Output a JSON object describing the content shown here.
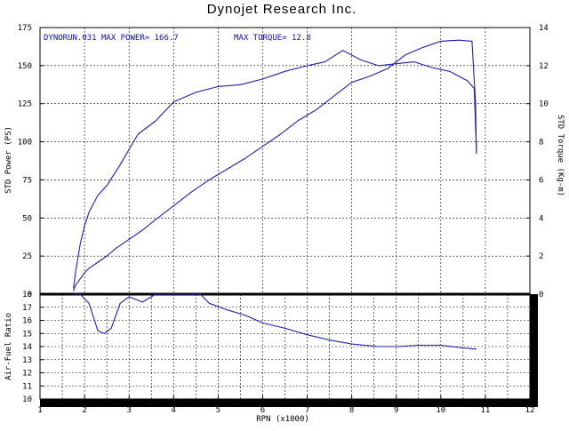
{
  "chart_data": {
    "type": "line",
    "title": "Dynojet Research Inc.",
    "annotations": {
      "run": "DYNORUN.031",
      "max_power": "MAX POWER= 166.7",
      "max_torque": "MAX TORQUE= 12.8"
    },
    "xlabel": "RPN (x1000)",
    "xlim": [
      1,
      12
    ],
    "xticks": [
      "1",
      "2",
      "3",
      "4",
      "5",
      "6",
      "7",
      "8",
      "9",
      "10",
      "11",
      "12"
    ],
    "upper": {
      "ylabel_left": "STD Power (PS)",
      "ylabel_right": "STD Torque (Kg-m)",
      "ylim_left": [
        0,
        175
      ],
      "ylim_right": [
        0,
        14
      ],
      "yticks_left": [
        "0",
        "25",
        "50",
        "75",
        "100",
        "125",
        "150",
        "175"
      ],
      "yticks_right": [
        "0",
        "2",
        "4",
        "6",
        "8",
        "10",
        "12",
        "14"
      ]
    },
    "lower": {
      "ylabel": "Air-Fuel Ratio",
      "ylim": [
        10,
        18
      ],
      "yticks": [
        "10",
        "11",
        "12",
        "13",
        "14",
        "15",
        "16",
        "17",
        "18"
      ]
    },
    "colors": {
      "series": "#1f1fa8",
      "axis": "#000000",
      "grid": "#000000"
    },
    "grid": true,
    "series": [
      {
        "axis": "left",
        "x": [
          1.75,
          1.8,
          1.9,
          2.0,
          2.1,
          2.3,
          2.5,
          2.7,
          3.0,
          3.3,
          3.6,
          4.0,
          4.4,
          4.8,
          5.2,
          5.6,
          6.0,
          6.4,
          6.8,
          7.2,
          7.6,
          8.0,
          8.4,
          8.8,
          9.2,
          9.6,
          10.0,
          10.4,
          10.7,
          10.78,
          10.8
        ],
        "values": [
          2,
          6,
          10,
          14,
          17,
          21,
          25,
          30,
          36,
          42,
          49,
          58,
          67,
          75,
          82,
          89,
          97,
          105,
          114,
          121,
          130,
          139,
          143,
          148,
          157,
          162,
          166,
          166.7,
          166,
          125,
          92
        ]
      },
      {
        "axis": "right",
        "x": [
          1.75,
          1.8,
          1.9,
          2.0,
          2.1,
          2.3,
          2.5,
          2.8,
          3.2,
          3.6,
          4.0,
          4.5,
          5.0,
          5.5,
          6.0,
          6.5,
          7.0,
          7.4,
          7.8,
          8.2,
          8.6,
          9.0,
          9.4,
          9.8,
          10.2,
          10.6,
          10.75,
          10.8
        ],
        "values": [
          0.3,
          1.2,
          2.6,
          3.6,
          4.3,
          5.2,
          5.7,
          6.8,
          8.4,
          9.1,
          10.1,
          10.6,
          10.9,
          11.0,
          11.3,
          11.7,
          12.0,
          12.2,
          12.8,
          12.3,
          12.0,
          12.1,
          12.2,
          11.9,
          11.7,
          11.2,
          10.8,
          7.5
        ]
      },
      {
        "axis": "lower",
        "x": [
          1.75,
          1.9,
          2.1,
          2.3,
          2.45,
          2.6,
          2.8,
          3.0,
          3.3,
          3.6,
          4.0,
          4.6,
          4.8,
          5.2,
          5.6,
          6.0,
          6.5,
          7.0,
          7.5,
          8.0,
          8.6,
          9.0,
          9.5,
          10.0,
          10.5,
          10.8
        ],
        "values": [
          18,
          18,
          17.3,
          15.2,
          15.0,
          15.4,
          17.3,
          17.8,
          17.4,
          18,
          18,
          18,
          17.3,
          16.8,
          16.4,
          15.8,
          15.4,
          14.9,
          14.5,
          14.2,
          14.0,
          14.0,
          14.1,
          14.1,
          13.9,
          13.8
        ]
      }
    ]
  }
}
